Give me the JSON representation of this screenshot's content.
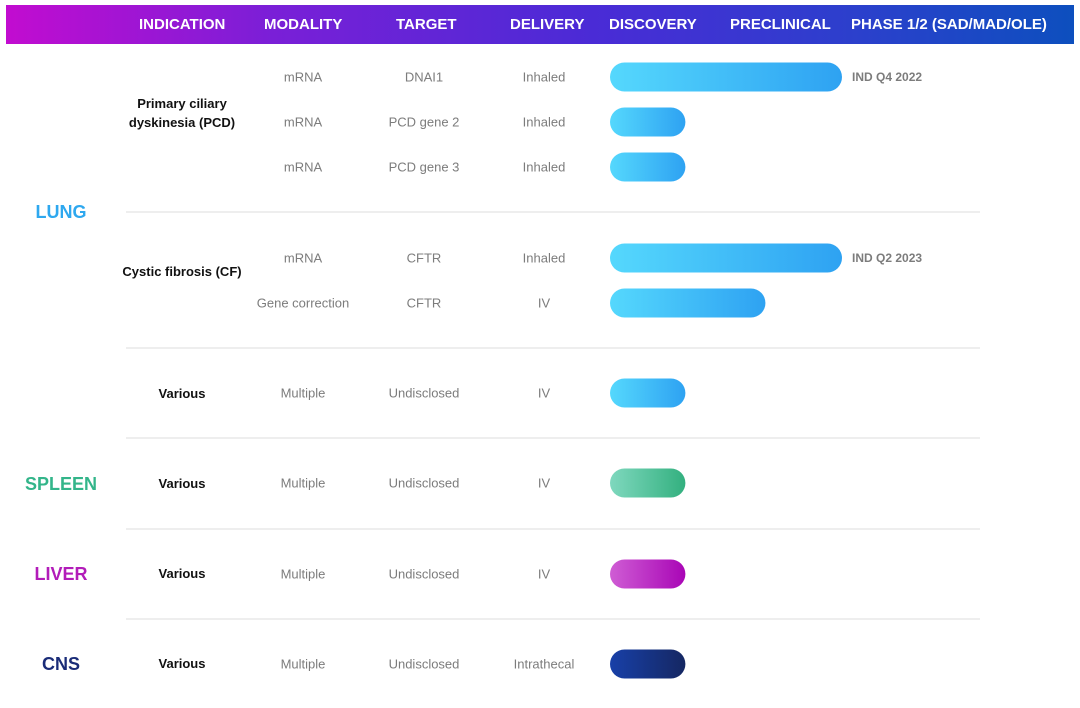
{
  "header": {
    "indication": "INDICATION",
    "modality": "MODALITY",
    "target": "TARGET",
    "delivery": "DELIVERY",
    "discovery": "DISCOVERY",
    "preclinical": "PRECLINICAL",
    "phase": "PHASE 1/2 (SAD/MAD/OLE)"
  },
  "organs": {
    "lung": "LUNG",
    "spleen": "SPLEEN",
    "liver": "LIVER",
    "cns": "CNS"
  },
  "colors": {
    "lung": "#2ea8ef",
    "spleen": "#33b58a",
    "liver": "#b21cb9",
    "cns": "#1a2c78",
    "header_start": "#c20cd0",
    "header_end": "#0d4fbe"
  },
  "indications": {
    "pcd": "Primary ciliary dyskinesia (PCD)",
    "cf": "Cystic fibrosis (CF)",
    "lung_various": "Various",
    "spleen_various": "Various",
    "liver_various": "Various",
    "cns_various": "Various"
  },
  "chart_data": {
    "type": "bar",
    "stages": [
      "DISCOVERY",
      "PRECLINICAL",
      "PHASE 1/2 (SAD/MAD/OLE)"
    ],
    "programs": [
      {
        "organ": "LUNG",
        "indication": "Primary ciliary dyskinesia (PCD)",
        "modality": "mRNA",
        "target": "DNAI1",
        "delivery": "Inhaled",
        "progress": 2.0,
        "note": "IND Q4 2022",
        "color": "lung"
      },
      {
        "organ": "LUNG",
        "indication": "Primary ciliary dyskinesia (PCD)",
        "modality": "mRNA",
        "target": "PCD gene 2",
        "delivery": "Inhaled",
        "progress": 0.65,
        "note": "",
        "color": "lung"
      },
      {
        "organ": "LUNG",
        "indication": "Primary ciliary dyskinesia (PCD)",
        "modality": "mRNA",
        "target": "PCD gene 3",
        "delivery": "Inhaled",
        "progress": 0.65,
        "note": "",
        "color": "lung"
      },
      {
        "organ": "LUNG",
        "indication": "Cystic fibrosis (CF)",
        "modality": "mRNA",
        "target": "CFTR",
        "delivery": "Inhaled",
        "progress": 2.0,
        "note": "IND Q2 2023",
        "color": "lung"
      },
      {
        "organ": "LUNG",
        "indication": "Cystic fibrosis (CF)",
        "modality": "Gene correction",
        "target": "CFTR",
        "delivery": "IV",
        "progress": 1.34,
        "note": "",
        "color": "lung"
      },
      {
        "organ": "LUNG",
        "indication": "Various",
        "modality": "Multiple",
        "target": "Undisclosed",
        "delivery": "IV",
        "progress": 0.65,
        "note": "",
        "color": "lung"
      },
      {
        "organ": "SPLEEN",
        "indication": "Various",
        "modality": "Multiple",
        "target": "Undisclosed",
        "delivery": "IV",
        "progress": 0.65,
        "note": "",
        "color": "spleen"
      },
      {
        "organ": "LIVER",
        "indication": "Various",
        "modality": "Multiple",
        "target": "Undisclosed",
        "delivery": "IV",
        "progress": 0.65,
        "note": "",
        "color": "liver"
      },
      {
        "organ": "CNS",
        "indication": "Various",
        "modality": "Multiple",
        "target": "Undisclosed",
        "delivery": "Intrathecal",
        "progress": 0.65,
        "note": "",
        "color": "cns"
      }
    ]
  }
}
